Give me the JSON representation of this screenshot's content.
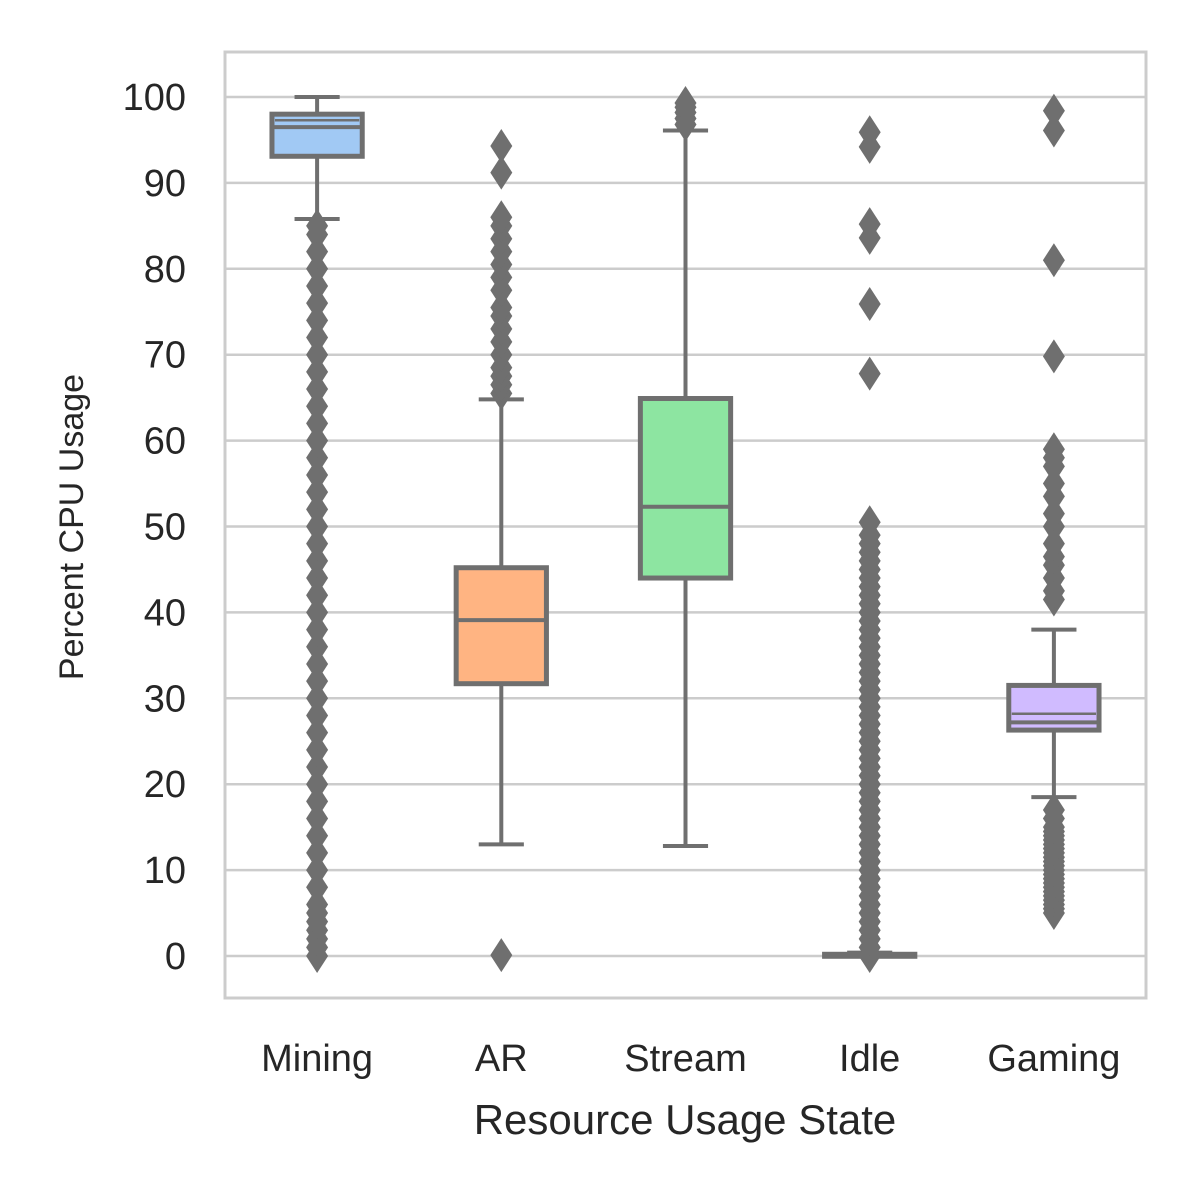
{
  "chart_data": {
    "type": "boxplot",
    "title": "",
    "xlabel": "Resource Usage State",
    "ylabel": "Percent CPU Usage",
    "ylim": [
      -5,
      105
    ],
    "yticks": [
      0,
      10,
      20,
      30,
      40,
      50,
      60,
      70,
      80,
      90,
      100
    ],
    "grid": true,
    "categories": [
      "Mining",
      "AR",
      "Stream",
      "Idle",
      "Gaming"
    ],
    "boxes": [
      {
        "name": "Mining",
        "color": "#a1c9f4",
        "whislo": 85.8,
        "q1": 93.1,
        "median": 96.5,
        "q3": 98.0,
        "whishi": 100.0,
        "mean_line": 97.3,
        "outliers": [
          0,
          1,
          2,
          3,
          4,
          5,
          6,
          8,
          10,
          12,
          14,
          16,
          18,
          20,
          22,
          24,
          26,
          28,
          30,
          32,
          34,
          36,
          38,
          40,
          42,
          44,
          46,
          48,
          50,
          52,
          54,
          56,
          58,
          60,
          62,
          64,
          66,
          68,
          70,
          72,
          74,
          76,
          78,
          80,
          82,
          84,
          85
        ]
      },
      {
        "name": "AR",
        "color": "#ffb482",
        "whislo": 13.0,
        "q1": 31.7,
        "median": 39.1,
        "q3": 45.2,
        "whishi": 64.8,
        "outliers": [
          0.1,
          65.5,
          66.5,
          67.5,
          68.5,
          70,
          71.5,
          73,
          74.5,
          75.5,
          77.5,
          79,
          80.5,
          82,
          83.5,
          85,
          86,
          91.2,
          94.3
        ]
      },
      {
        "name": "Stream",
        "color": "#8de5a1",
        "whislo": 12.8,
        "q1": 44.0,
        "median": 52.3,
        "q3": 64.9,
        "whishi": 96.1,
        "outliers": [
          96.8,
          97.5,
          98.2,
          98.8,
          99.3
        ]
      },
      {
        "name": "Idle",
        "color": "#ff9f9b",
        "whislo": 0.0,
        "q1": 0.05,
        "median": 0.1,
        "q3": 0.2,
        "whishi": 0.4,
        "outliers": [
          0,
          1,
          2,
          3,
          4,
          5,
          6,
          7,
          8,
          9,
          10,
          11,
          12,
          13,
          14,
          15,
          16,
          17,
          18,
          19,
          20,
          21,
          22,
          23,
          24,
          25,
          26,
          27,
          28,
          29,
          30,
          31,
          32,
          33,
          34,
          35,
          36,
          37,
          38,
          39,
          40,
          41,
          42,
          43,
          44,
          45,
          46,
          47,
          48,
          49,
          50.5,
          67.8,
          75.9,
          83.6,
          85.2,
          94.2,
          95.9
        ]
      },
      {
        "name": "Gaming",
        "color": "#d0bbff",
        "whislo": 18.5,
        "q1": 26.3,
        "median": 27.2,
        "q3": 31.5,
        "whishi": 38.0,
        "mean_line": 28.2,
        "outliers": [
          5,
          5.5,
          6,
          6.5,
          7,
          7.5,
          8,
          8.5,
          9,
          9.5,
          10,
          10.5,
          11,
          11.5,
          12,
          12.5,
          13,
          13.5,
          14,
          14.5,
          15,
          16,
          17,
          41.5,
          42.5,
          44,
          45.5,
          46.5,
          48,
          50,
          51.5,
          53.5,
          55,
          57,
          58,
          59,
          69.8,
          81.0,
          96.1,
          98.4
        ]
      }
    ]
  }
}
